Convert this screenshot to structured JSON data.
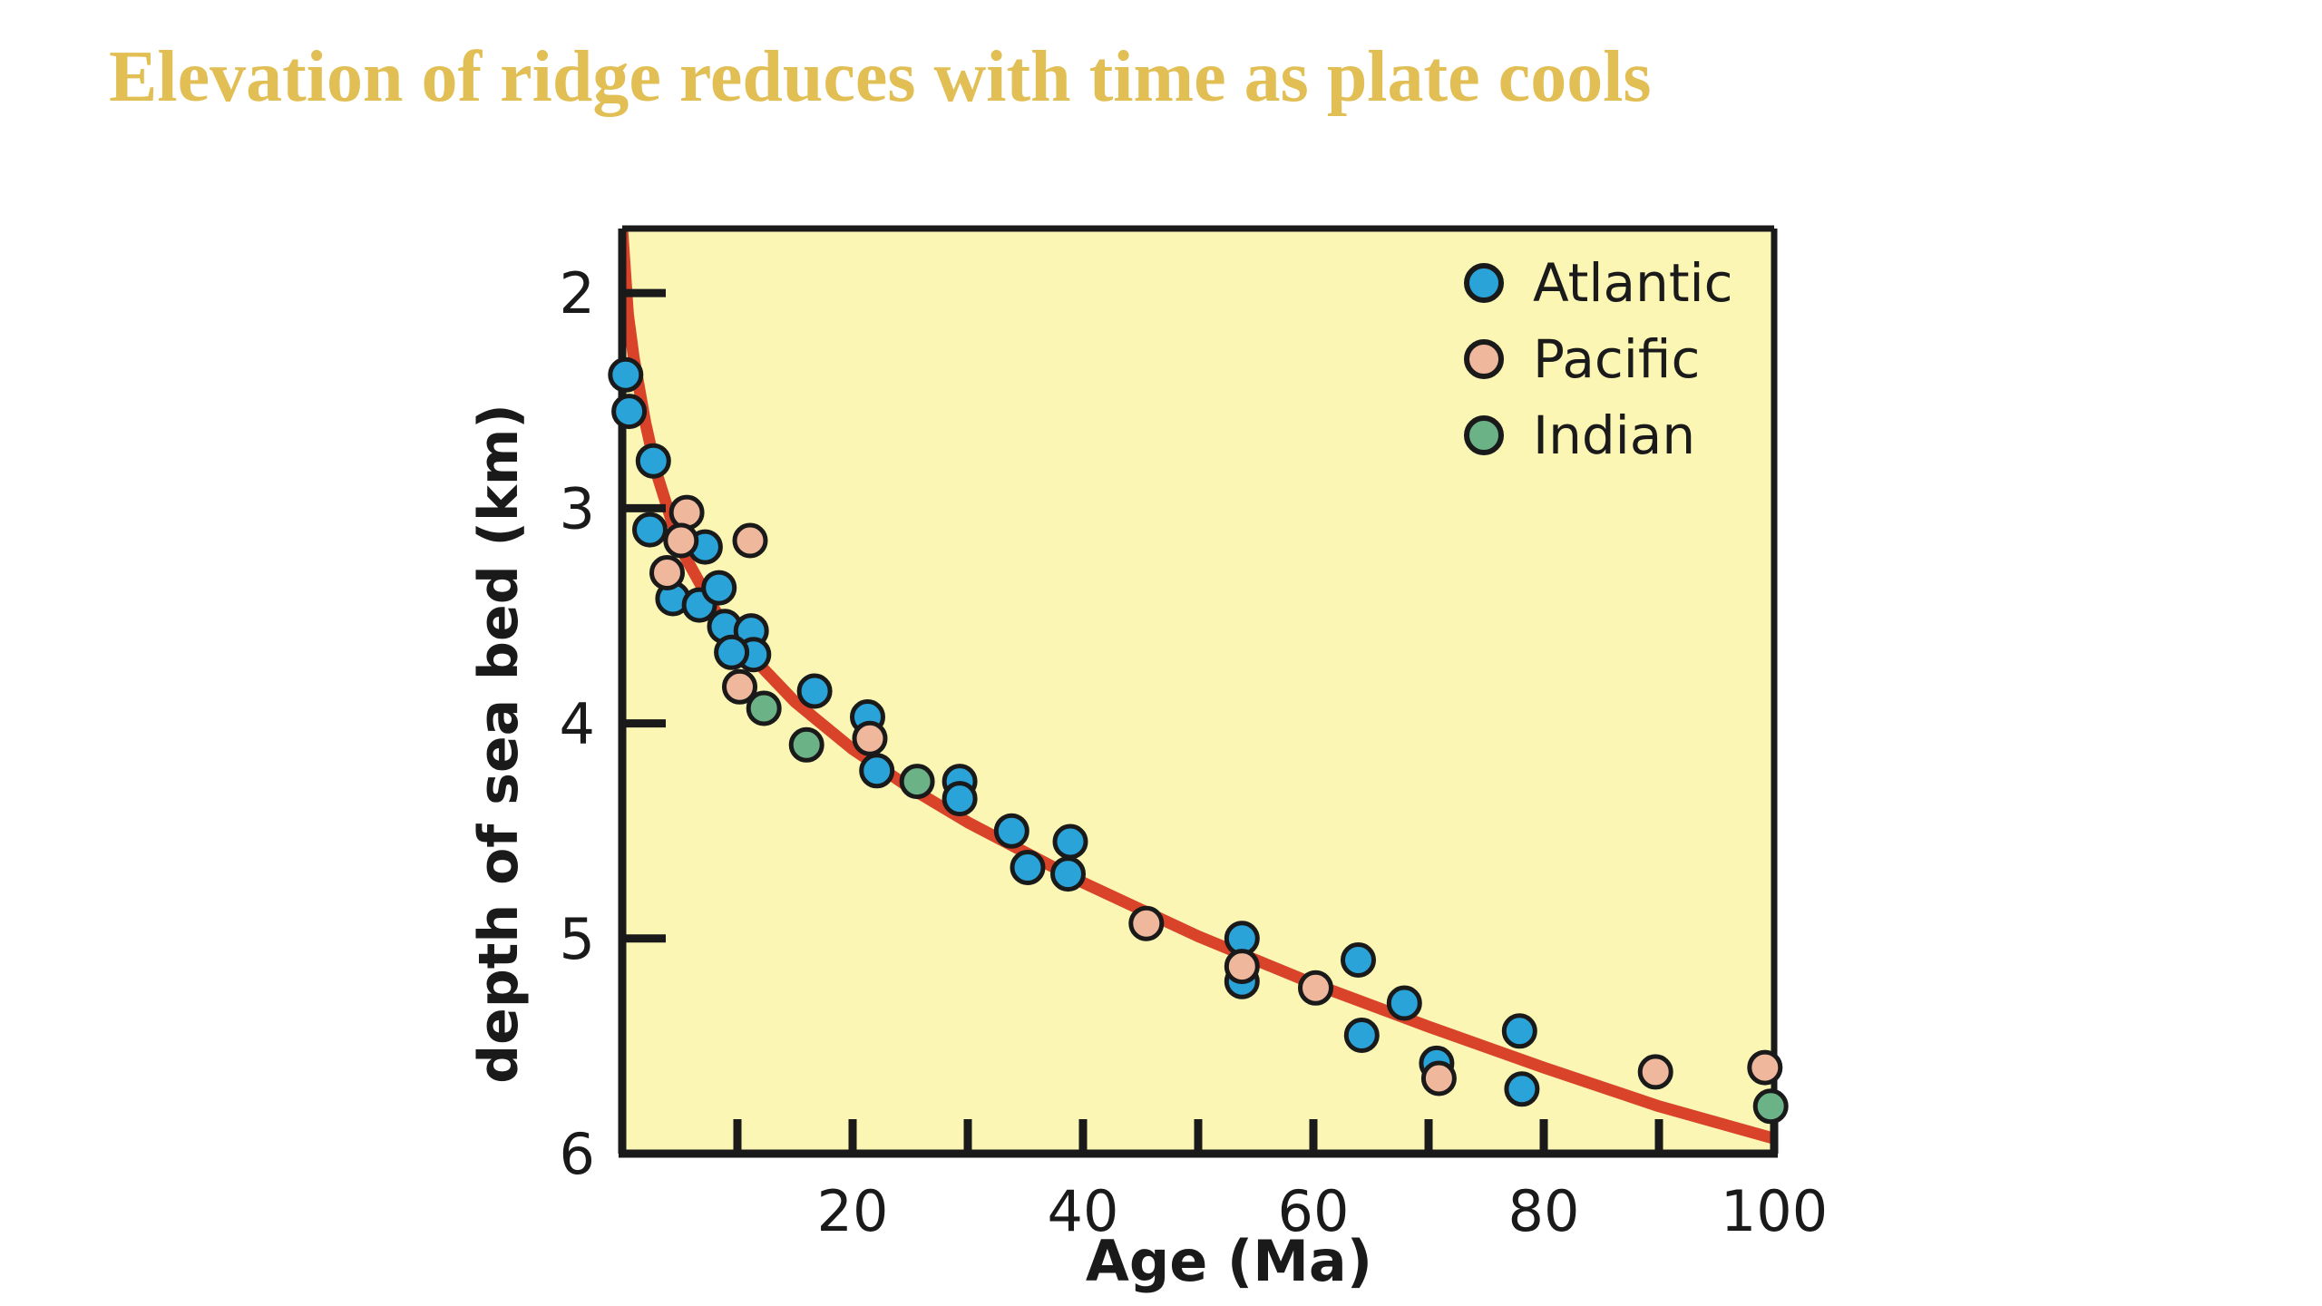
{
  "slide": {
    "title": "Elevation of ridge reduces with time as plate cools"
  },
  "colors": {
    "title": "#e2bf55",
    "plot_background": "#fbf6b4",
    "curve": "#d8432a",
    "axis": "#1a1a1a",
    "Atlantic": "#2aa3d8",
    "Pacific": "#efb79c",
    "Indian": "#6bb287"
  },
  "chart_data": {
    "type": "scatter",
    "title": "",
    "xlabel": "Age (Ma)",
    "ylabel": "depth of sea bed (km)",
    "xlim": [
      0,
      100
    ],
    "ylim": [
      6,
      1.7
    ],
    "y_inverted": true,
    "grid": false,
    "legend_position": "top-right",
    "x_ticks": [
      0,
      10,
      20,
      30,
      40,
      50,
      60,
      70,
      80,
      90,
      100
    ],
    "x_tick_labels": [
      "20",
      "40",
      "60",
      "80",
      "100"
    ],
    "x_tick_label_values": [
      20,
      40,
      60,
      80,
      100
    ],
    "y_ticks": [
      2,
      3,
      4,
      5,
      6
    ],
    "y_tick_labels": [
      "2",
      "3",
      "4",
      "5",
      "6"
    ],
    "series": [
      {
        "name": "Atlantic",
        "color": "#2aa3d8",
        "points": [
          [
            0.3,
            2.38
          ],
          [
            0.6,
            2.55
          ],
          [
            2.7,
            2.78
          ],
          [
            2.4,
            3.1
          ],
          [
            4.4,
            3.42
          ],
          [
            7.2,
            3.18
          ],
          [
            6.7,
            3.45
          ],
          [
            8.4,
            3.37
          ],
          [
            8.9,
            3.55
          ],
          [
            11.2,
            3.57
          ],
          [
            11.4,
            3.68
          ],
          [
            9.5,
            3.67
          ],
          [
            16.7,
            3.85
          ],
          [
            21.3,
            3.97
          ],
          [
            22.1,
            4.22
          ],
          [
            29.3,
            4.27
          ],
          [
            29.3,
            4.35
          ],
          [
            33.8,
            4.5
          ],
          [
            35.2,
            4.67
          ],
          [
            38.9,
            4.55
          ],
          [
            38.7,
            4.7
          ],
          [
            53.8,
            5.0
          ],
          [
            53.8,
            5.2
          ],
          [
            63.9,
            5.1
          ],
          [
            64.2,
            5.45
          ],
          [
            67.9,
            5.3
          ],
          [
            70.7,
            5.58
          ],
          [
            77.9,
            5.43
          ],
          [
            78.1,
            5.7
          ]
        ]
      },
      {
        "name": "Pacific",
        "color": "#efb79c",
        "points": [
          [
            5.6,
            3.02
          ],
          [
            5.1,
            3.15
          ],
          [
            3.9,
            3.3
          ],
          [
            11.1,
            3.15
          ],
          [
            10.2,
            3.83
          ],
          [
            21.5,
            4.07
          ],
          [
            45.5,
            4.93
          ],
          [
            53.8,
            5.13
          ],
          [
            60.2,
            5.23
          ],
          [
            70.9,
            5.65
          ],
          [
            89.7,
            5.62
          ],
          [
            99.2,
            5.6
          ]
        ]
      },
      {
        "name": "Indian",
        "color": "#6bb287",
        "points": [
          [
            12.3,
            3.93
          ],
          [
            16.0,
            4.1
          ],
          [
            25.6,
            4.27
          ],
          [
            99.7,
            5.78
          ]
        ]
      }
    ],
    "fit_curve": {
      "x": [
        0,
        0.5,
        1,
        2,
        3,
        5,
        8,
        10,
        15,
        20,
        25,
        30,
        40,
        50,
        60,
        70,
        80,
        90,
        100
      ],
      "y": [
        1.7,
        2.1,
        2.3,
        2.6,
        2.84,
        3.18,
        3.47,
        3.62,
        3.9,
        4.12,
        4.3,
        4.46,
        4.74,
        4.99,
        5.21,
        5.41,
        5.6,
        5.78,
        5.93
      ]
    }
  }
}
